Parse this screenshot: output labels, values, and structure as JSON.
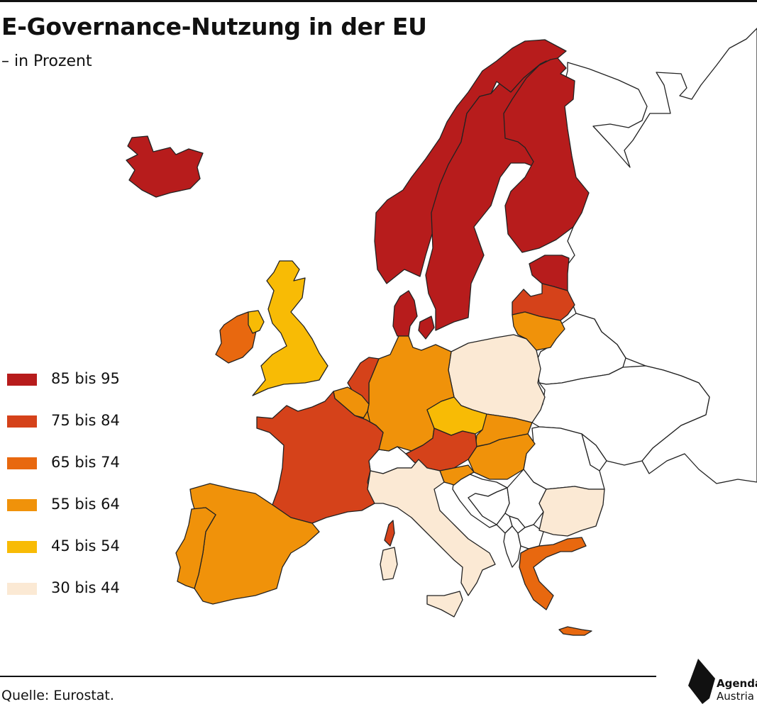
{
  "title": "E-Governance-Nutzung in der EU",
  "subtitle": "– in Prozent",
  "source": "Quelle: Eurostat.",
  "logo": {
    "line1": "Agenda",
    "line2": "Austria"
  },
  "legend": [
    {
      "label": "85 bis 95",
      "color": "#b71c1c"
    },
    {
      "label": "75 bis 84",
      "color": "#d5421a"
    },
    {
      "label": "65 bis 74",
      "color": "#e8680f"
    },
    {
      "label": "55 bis 64",
      "color": "#f0920a"
    },
    {
      "label": "45 bis 54",
      "color": "#f8bb05"
    },
    {
      "label": "30 bis 44",
      "color": "#fbe9d4"
    }
  ],
  "no_data_color": "#ffffff",
  "regions": [
    {
      "name": "iceland",
      "class": 0
    },
    {
      "name": "norway",
      "class": 0
    },
    {
      "name": "sweden",
      "class": 0
    },
    {
      "name": "finland",
      "class": 0
    },
    {
      "name": "denmark",
      "class": 0
    },
    {
      "name": "estonia",
      "class": 0
    },
    {
      "name": "latvia",
      "class": 1
    },
    {
      "name": "france",
      "class": 1
    },
    {
      "name": "corsica",
      "class": 1
    },
    {
      "name": "austria",
      "class": 1
    },
    {
      "name": "netherlands",
      "class": 1
    },
    {
      "name": "ireland",
      "class": 2
    },
    {
      "name": "greece",
      "class": 2
    },
    {
      "name": "crete",
      "class": 2
    },
    {
      "name": "germany",
      "class": 3
    },
    {
      "name": "spain",
      "class": 3
    },
    {
      "name": "portugal",
      "class": 3
    },
    {
      "name": "belgium",
      "class": 3
    },
    {
      "name": "lithuania",
      "class": 3
    },
    {
      "name": "slovakia",
      "class": 3
    },
    {
      "name": "hungary",
      "class": 3
    },
    {
      "name": "slovenia",
      "class": 3
    },
    {
      "name": "luxembourg",
      "class": 3
    },
    {
      "name": "united-kingdom",
      "class": 4
    },
    {
      "name": "northern-ireland",
      "class": 4
    },
    {
      "name": "czechia",
      "class": 4
    },
    {
      "name": "poland",
      "class": 5
    },
    {
      "name": "italy",
      "class": 5
    },
    {
      "name": "sardinia",
      "class": 5
    },
    {
      "name": "sicily",
      "class": 5
    },
    {
      "name": "bulgaria",
      "class": 5
    },
    {
      "name": "switzerland",
      "class": null
    },
    {
      "name": "belarus",
      "class": null
    },
    {
      "name": "ukraine",
      "class": null
    },
    {
      "name": "romania",
      "class": null
    },
    {
      "name": "russia",
      "class": null
    },
    {
      "name": "moldova",
      "class": null
    },
    {
      "name": "croatia",
      "class": null
    },
    {
      "name": "bosnia",
      "class": null
    },
    {
      "name": "serbia",
      "class": null
    },
    {
      "name": "montenegro",
      "class": null
    },
    {
      "name": "kosovo",
      "class": null
    },
    {
      "name": "north-macedonia",
      "class": null
    },
    {
      "name": "albania",
      "class": null
    }
  ]
}
